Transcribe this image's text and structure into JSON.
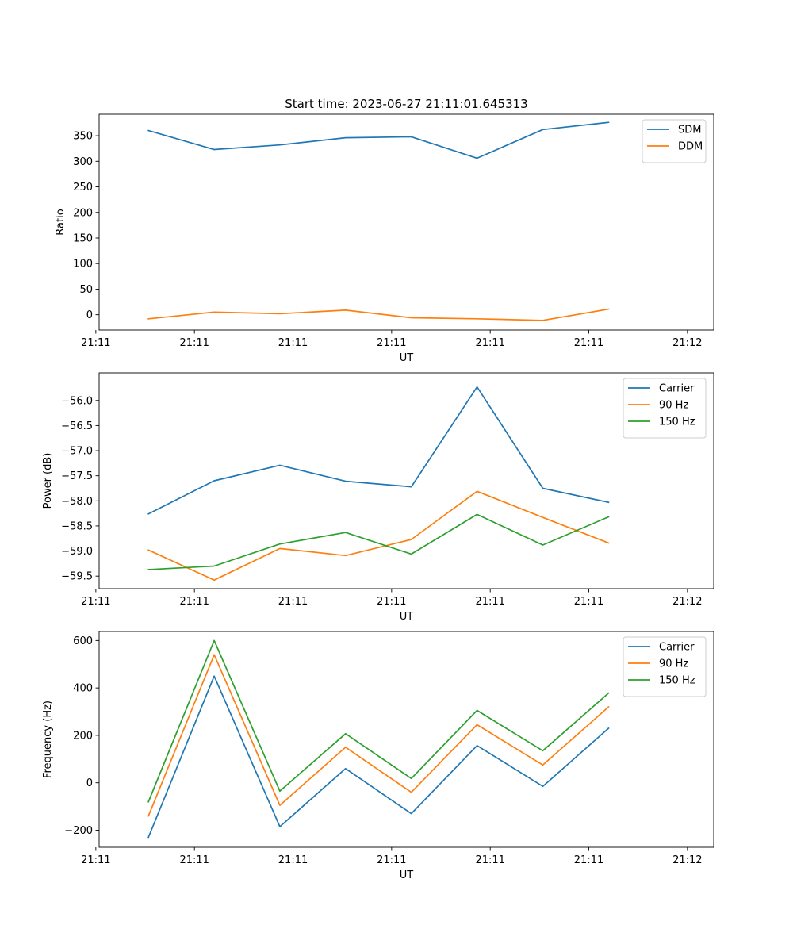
{
  "figure": {
    "title": "Start time: 2023-06-27 21:11:01.645313"
  },
  "colors": {
    "blue": "#1f77b4",
    "orange": "#ff7f0e",
    "green": "#2ca02c"
  },
  "chart_data": [
    {
      "type": "line",
      "title": "Start time: 2023-06-27 21:11:01.645313",
      "xlabel": "UT",
      "ylabel": "Ratio",
      "x": [
        1,
        2,
        3,
        4,
        5,
        6,
        7,
        8
      ],
      "xlim": [
        0.25,
        9.6
      ],
      "ylim": [
        -30,
        392
      ],
      "x_ticks": [
        {
          "x": 0.2,
          "label": "21:11"
        },
        {
          "x": 1.7,
          "label": "21:11"
        },
        {
          "x": 3.2,
          "label": "21:11"
        },
        {
          "x": 4.7,
          "label": "21:11"
        },
        {
          "x": 6.2,
          "label": "21:11"
        },
        {
          "x": 7.7,
          "label": "21:11"
        },
        {
          "x": 9.2,
          "label": "21:12"
        }
      ],
      "y_ticks": [
        0,
        50,
        100,
        150,
        200,
        250,
        300,
        350
      ],
      "y_tick_labels": [
        "0",
        "50",
        "100",
        "150",
        "200",
        "250",
        "300",
        "350"
      ],
      "legend": "top-right",
      "grid": false,
      "series": [
        {
          "name": "SDM",
          "color": "#1f77b4",
          "values": [
            360,
            323,
            332,
            346,
            348,
            306,
            362,
            376
          ]
        },
        {
          "name": "DDM",
          "color": "#ff7f0e",
          "values": [
            -8,
            5,
            2,
            9,
            -6,
            -8,
            -11,
            11
          ]
        }
      ]
    },
    {
      "type": "line",
      "title": "",
      "xlabel": "UT",
      "ylabel": "Power (dB)",
      "x": [
        1,
        2,
        3,
        4,
        5,
        6,
        7,
        8
      ],
      "xlim": [
        0.25,
        9.6
      ],
      "ylim": [
        -59.75,
        -55.45
      ],
      "x_ticks": [
        {
          "x": 0.2,
          "label": "21:11"
        },
        {
          "x": 1.7,
          "label": "21:11"
        },
        {
          "x": 3.2,
          "label": "21:11"
        },
        {
          "x": 4.7,
          "label": "21:11"
        },
        {
          "x": 6.2,
          "label": "21:11"
        },
        {
          "x": 7.7,
          "label": "21:11"
        },
        {
          "x": 9.2,
          "label": "21:12"
        }
      ],
      "y_ticks": [
        -59.5,
        -59.0,
        -58.5,
        -58.0,
        -57.5,
        -57.0,
        -56.5,
        -56.0
      ],
      "y_tick_labels": [
        "−59.5",
        "−59.0",
        "−58.5",
        "−58.0",
        "−57.5",
        "−57.0",
        "−56.5",
        "−56.0"
      ],
      "legend": "top-right",
      "grid": false,
      "series": [
        {
          "name": "Carrier",
          "color": "#1f77b4",
          "values": [
            -58.26,
            -57.6,
            -57.29,
            -57.61,
            -57.72,
            -55.73,
            -57.75,
            -58.03
          ]
        },
        {
          "name": "90 Hz",
          "color": "#ff7f0e",
          "values": [
            -58.98,
            -59.58,
            -58.95,
            -59.09,
            -58.77,
            -57.81,
            -58.33,
            -58.84
          ]
        },
        {
          "name": "150 Hz",
          "color": "#2ca02c",
          "values": [
            -59.37,
            -59.3,
            -58.86,
            -58.63,
            -59.06,
            -58.27,
            -58.88,
            -58.32
          ]
        }
      ]
    },
    {
      "type": "line",
      "title": "",
      "xlabel": "UT",
      "ylabel": "Frequency (Hz)",
      "x": [
        1,
        2,
        3,
        4,
        5,
        6,
        7,
        8
      ],
      "xlim": [
        0.25,
        9.6
      ],
      "ylim": [
        -272,
        638
      ],
      "x_ticks": [
        {
          "x": 0.2,
          "label": "21:11"
        },
        {
          "x": 1.7,
          "label": "21:11"
        },
        {
          "x": 3.2,
          "label": "21:11"
        },
        {
          "x": 4.7,
          "label": "21:11"
        },
        {
          "x": 6.2,
          "label": "21:11"
        },
        {
          "x": 7.7,
          "label": "21:11"
        },
        {
          "x": 9.2,
          "label": "21:12"
        }
      ],
      "y_ticks": [
        -200,
        0,
        200,
        400,
        600
      ],
      "y_tick_labels": [
        "−200",
        "0",
        "200",
        "400",
        "600"
      ],
      "legend": "top-right",
      "grid": false,
      "series": [
        {
          "name": "Carrier",
          "color": "#1f77b4",
          "values": [
            -230,
            450,
            -185,
            60,
            -130,
            157,
            -15,
            230
          ]
        },
        {
          "name": "90 Hz",
          "color": "#ff7f0e",
          "values": [
            -140,
            540,
            -95,
            150,
            -40,
            245,
            75,
            320
          ]
        },
        {
          "name": "150 Hz",
          "color": "#2ca02c",
          "values": [
            -80,
            600,
            -35,
            207,
            18,
            305,
            135,
            378
          ]
        }
      ]
    }
  ]
}
